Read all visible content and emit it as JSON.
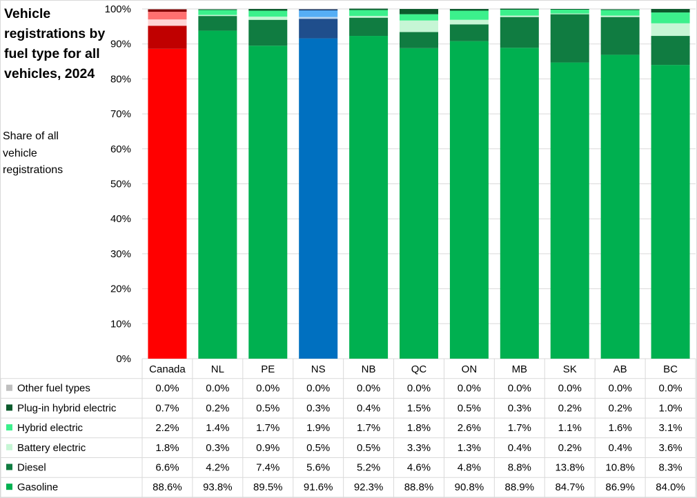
{
  "title": "Vehicle registrations by fuel type for all vehicles, 2024",
  "subtitle": "Share of all vehicle registrations",
  "chart_data": {
    "type": "bar",
    "stacked": true,
    "percent": true,
    "title": "Vehicle registrations by fuel type for all vehicles, 2024",
    "ylabel": "Share of all vehicle registrations",
    "ylim": [
      0,
      100
    ],
    "y_ticks": [
      "0%",
      "10%",
      "20%",
      "30%",
      "40%",
      "50%",
      "60%",
      "70%",
      "80%",
      "90%",
      "100%"
    ],
    "categories": [
      "Canada",
      "NL",
      "PE",
      "NS",
      "NB",
      "QC",
      "ON",
      "MB",
      "SK",
      "AB",
      "BC"
    ],
    "series": [
      {
        "name": "Gasoline",
        "values": [
          88.6,
          93.8,
          89.5,
          91.6,
          92.3,
          88.8,
          90.8,
          88.9,
          84.7,
          86.9,
          84.0
        ],
        "labels": [
          "88.6%",
          "93.8%",
          "89.5%",
          "91.6%",
          "92.3%",
          "88.8%",
          "90.8%",
          "88.9%",
          "84.7%",
          "86.9%",
          "84.0%"
        ]
      },
      {
        "name": "Diesel",
        "values": [
          6.6,
          4.2,
          7.4,
          5.6,
          5.2,
          4.6,
          4.8,
          8.8,
          13.8,
          10.8,
          8.3
        ],
        "labels": [
          "6.6%",
          "4.2%",
          "7.4%",
          "5.6%",
          "5.2%",
          "4.6%",
          "4.8%",
          "8.8%",
          "13.8%",
          "10.8%",
          "8.3%"
        ]
      },
      {
        "name": "Battery electric",
        "values": [
          1.8,
          0.3,
          0.9,
          0.5,
          0.5,
          3.3,
          1.3,
          0.4,
          0.2,
          0.4,
          3.6
        ],
        "labels": [
          "1.8%",
          "0.3%",
          "0.9%",
          "0.5%",
          "0.5%",
          "3.3%",
          "1.3%",
          "0.4%",
          "0.2%",
          "0.4%",
          "3.6%"
        ]
      },
      {
        "name": "Hybrid electric",
        "values": [
          2.2,
          1.4,
          1.7,
          1.9,
          1.7,
          1.8,
          2.6,
          1.7,
          1.1,
          1.6,
          3.1
        ],
        "labels": [
          "2.2%",
          "1.4%",
          "1.7%",
          "1.9%",
          "1.7%",
          "1.8%",
          "2.6%",
          "1.7%",
          "1.1%",
          "1.6%",
          "3.1%"
        ]
      },
      {
        "name": "Plug-in hybrid electric",
        "values": [
          0.7,
          0.2,
          0.5,
          0.3,
          0.4,
          1.5,
          0.5,
          0.3,
          0.2,
          0.2,
          1.0
        ],
        "labels": [
          "0.7%",
          "0.2%",
          "0.5%",
          "0.3%",
          "0.4%",
          "1.5%",
          "0.5%",
          "0.3%",
          "0.2%",
          "0.2%",
          "1.0%"
        ]
      },
      {
        "name": "Other fuel types",
        "values": [
          0.0,
          0.0,
          0.0,
          0.0,
          0.0,
          0.0,
          0.0,
          0.0,
          0.0,
          0.0,
          0.0
        ],
        "labels": [
          "0.0%",
          "0.0%",
          "0.0%",
          "0.0%",
          "0.0%",
          "0.0%",
          "0.0%",
          "0.0%",
          "0.0%",
          "0.0%",
          "0.0%"
        ]
      }
    ],
    "table_row_order": [
      "Other fuel types",
      "Plug-in hybrid electric",
      "Hybrid electric",
      "Battery electric",
      "Diesel",
      "Gasoline"
    ],
    "colors": {
      "Gasoline": "#00b050",
      "Diesel": "#107c41",
      "Battery electric": "#c6f6d5",
      "Hybrid electric": "#3cf08c",
      "Plug-in hybrid electric": "#0b5a2c",
      "Other fuel types": "#bfbfbf"
    },
    "highlight_colors": {
      "Canada": {
        "Gasoline": "#ff0000",
        "Diesel": "#c00000",
        "Battery electric": "#ffd5d5",
        "Hybrid electric": "#ff7070",
        "Plug-in hybrid electric": "#800000",
        "Other fuel types": "#bfbfbf"
      },
      "NS": {
        "Gasoline": "#0070c0",
        "Diesel": "#1f4e8c",
        "Battery electric": "#bdd7ee",
        "Hybrid electric": "#56aef5",
        "Plug-in hybrid electric": "#0a2a5c",
        "Other fuel types": "#bfbfbf"
      }
    }
  }
}
